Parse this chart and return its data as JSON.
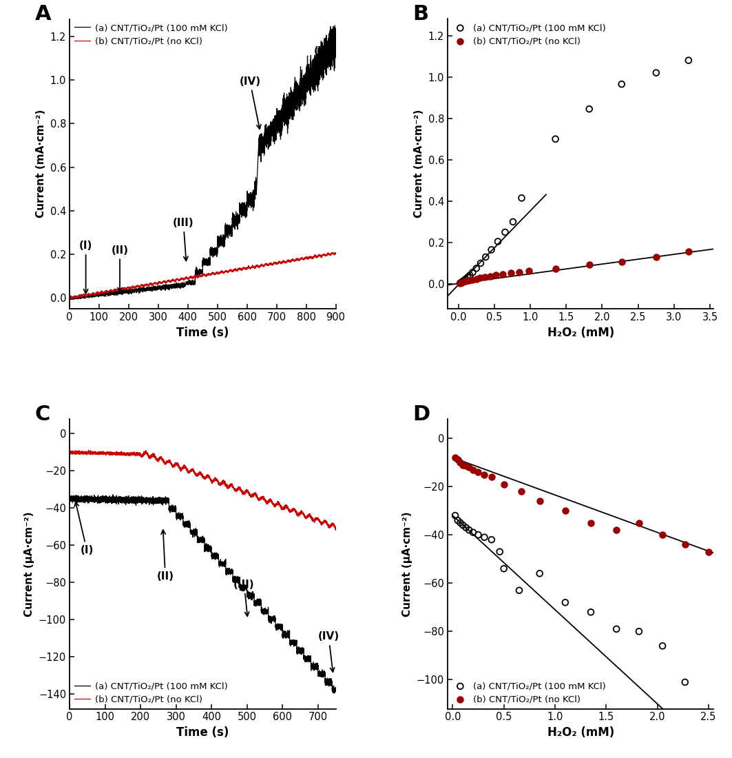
{
  "panel_A": {
    "label": "A",
    "xlabel": "Time (s)",
    "ylabel": "Current (mA·cm⁻²)",
    "xlim": [
      0,
      900
    ],
    "ylim": [
      -0.05,
      1.28
    ],
    "yticks": [
      0.0,
      0.2,
      0.4,
      0.6,
      0.8,
      1.0,
      1.2
    ],
    "xticks": [
      0,
      100,
      200,
      300,
      400,
      500,
      600,
      700,
      800,
      900
    ],
    "legend_a": "(a) CNT/TiO₂/Pt (100 mM KCl)",
    "legend_b": "(b) CNT/TiO₂/Pt (no KCl)",
    "color_a": "#000000",
    "color_b": "#cc0000"
  },
  "panel_B": {
    "label": "B",
    "xlabel": "H₂O₂ (mM)",
    "ylabel": "Current (mA·cm⁻²)",
    "xlim": [
      -0.15,
      3.55
    ],
    "ylim": [
      -0.12,
      1.28
    ],
    "yticks": [
      0.0,
      0.2,
      0.4,
      0.6,
      0.8,
      1.0,
      1.2
    ],
    "xticks": [
      0.0,
      0.5,
      1.0,
      1.5,
      2.0,
      2.5,
      3.0,
      3.5
    ],
    "legend_a": "(a) CNT/TiO₂/Pt (100 mM KCl)",
    "legend_b": "(b) CNT/TiO₂/Pt (no KCl)",
    "color_a": "#000000",
    "color_b": "#990000",
    "scatter_a_x": [
      0.025,
      0.05,
      0.075,
      0.1,
      0.13,
      0.16,
      0.2,
      0.25,
      0.31,
      0.38,
      0.46,
      0.55,
      0.65,
      0.76,
      0.88,
      1.35,
      1.82,
      2.27,
      2.75,
      3.2
    ],
    "scatter_a_y": [
      0.004,
      0.01,
      0.016,
      0.023,
      0.032,
      0.042,
      0.056,
      0.075,
      0.1,
      0.13,
      0.165,
      0.205,
      0.25,
      0.3,
      0.415,
      0.7,
      0.845,
      0.965,
      1.02,
      1.08
    ],
    "scatter_b_x": [
      0.025,
      0.05,
      0.1,
      0.15,
      0.2,
      0.25,
      0.3,
      0.37,
      0.44,
      0.52,
      0.62,
      0.73,
      0.85,
      0.98,
      1.35,
      1.82,
      2.27,
      2.75,
      3.2
    ],
    "scatter_b_y": [
      0.003,
      0.006,
      0.012,
      0.016,
      0.021,
      0.025,
      0.03,
      0.034,
      0.038,
      0.043,
      0.047,
      0.052,
      0.057,
      0.063,
      0.075,
      0.093,
      0.106,
      0.13,
      0.158
    ],
    "line_a_x0": -0.15,
    "line_a_x1": 1.22,
    "line_a_slope": 0.358,
    "line_a_intercept": -0.005,
    "line_b_x0": -0.15,
    "line_b_x1": 3.55,
    "line_b_slope": 0.047,
    "line_b_intercept": 0.002
  },
  "panel_C": {
    "label": "C",
    "xlabel": "Time (s)",
    "ylabel": "Current (μA·cm⁻²)",
    "xlim": [
      0,
      750
    ],
    "ylim": [
      -148,
      8
    ],
    "yticks": [
      0,
      -20,
      -40,
      -60,
      -80,
      -100,
      -120,
      -140
    ],
    "xticks": [
      0,
      100,
      200,
      300,
      400,
      500,
      600,
      700
    ],
    "legend_a": "(a) CNT/TiO₂/Pt (100 mM KCl)",
    "legend_b": "(b) CNT/TiO₂/Pt (no KCl)",
    "color_a": "#000000",
    "color_b": "#cc0000"
  },
  "panel_D": {
    "label": "D",
    "xlabel": "H₂O₂ (mM)",
    "ylabel": "Current (μA·cm⁻²)",
    "xlim": [
      -0.05,
      2.55
    ],
    "ylim": [
      -112,
      8
    ],
    "yticks": [
      0,
      -20,
      -40,
      -60,
      -80,
      -100
    ],
    "xticks": [
      0.0,
      0.5,
      1.0,
      1.5,
      2.0,
      2.5
    ],
    "legend_a": "(a) CNT/TiO₂/Pt (100 mM KCl)",
    "legend_b": "(b) CNT/TiO₂/Pt (no KCl)",
    "color_a": "#000000",
    "color_b": "#990000",
    "scatter_a_x": [
      0.025,
      0.05,
      0.075,
      0.1,
      0.13,
      0.16,
      0.2,
      0.25,
      0.31,
      0.38,
      0.46,
      0.5,
      0.65,
      0.85,
      1.1,
      1.35,
      1.6,
      1.82,
      2.05,
      2.27
    ],
    "scatter_a_y": [
      -32,
      -34,
      -35,
      -36,
      -37,
      -38,
      -39,
      -40,
      -41,
      -42,
      -47,
      -54,
      -63,
      -56,
      -68,
      -72,
      -79,
      -80,
      -86,
      -101
    ],
    "scatter_b_x": [
      0.025,
      0.05,
      0.075,
      0.1,
      0.13,
      0.16,
      0.2,
      0.25,
      0.31,
      0.38,
      0.5,
      0.67,
      0.85,
      1.1,
      1.35,
      1.6,
      1.82,
      2.05,
      2.27,
      2.5
    ],
    "scatter_b_y": [
      -8,
      -9,
      -10,
      -11,
      -11.5,
      -12,
      -13,
      -14,
      -15,
      -16,
      -19,
      -22,
      -26,
      -30,
      -35,
      -38,
      -35,
      -40,
      -44,
      -47
    ],
    "line_a_x0": 0.0,
    "line_a_x1": 2.55,
    "line_a_slope": -39.0,
    "line_a_intercept": -32.0,
    "line_b_x0": 0.0,
    "line_b_x1": 2.55,
    "line_b_slope": -15.5,
    "line_b_intercept": -8.0
  }
}
